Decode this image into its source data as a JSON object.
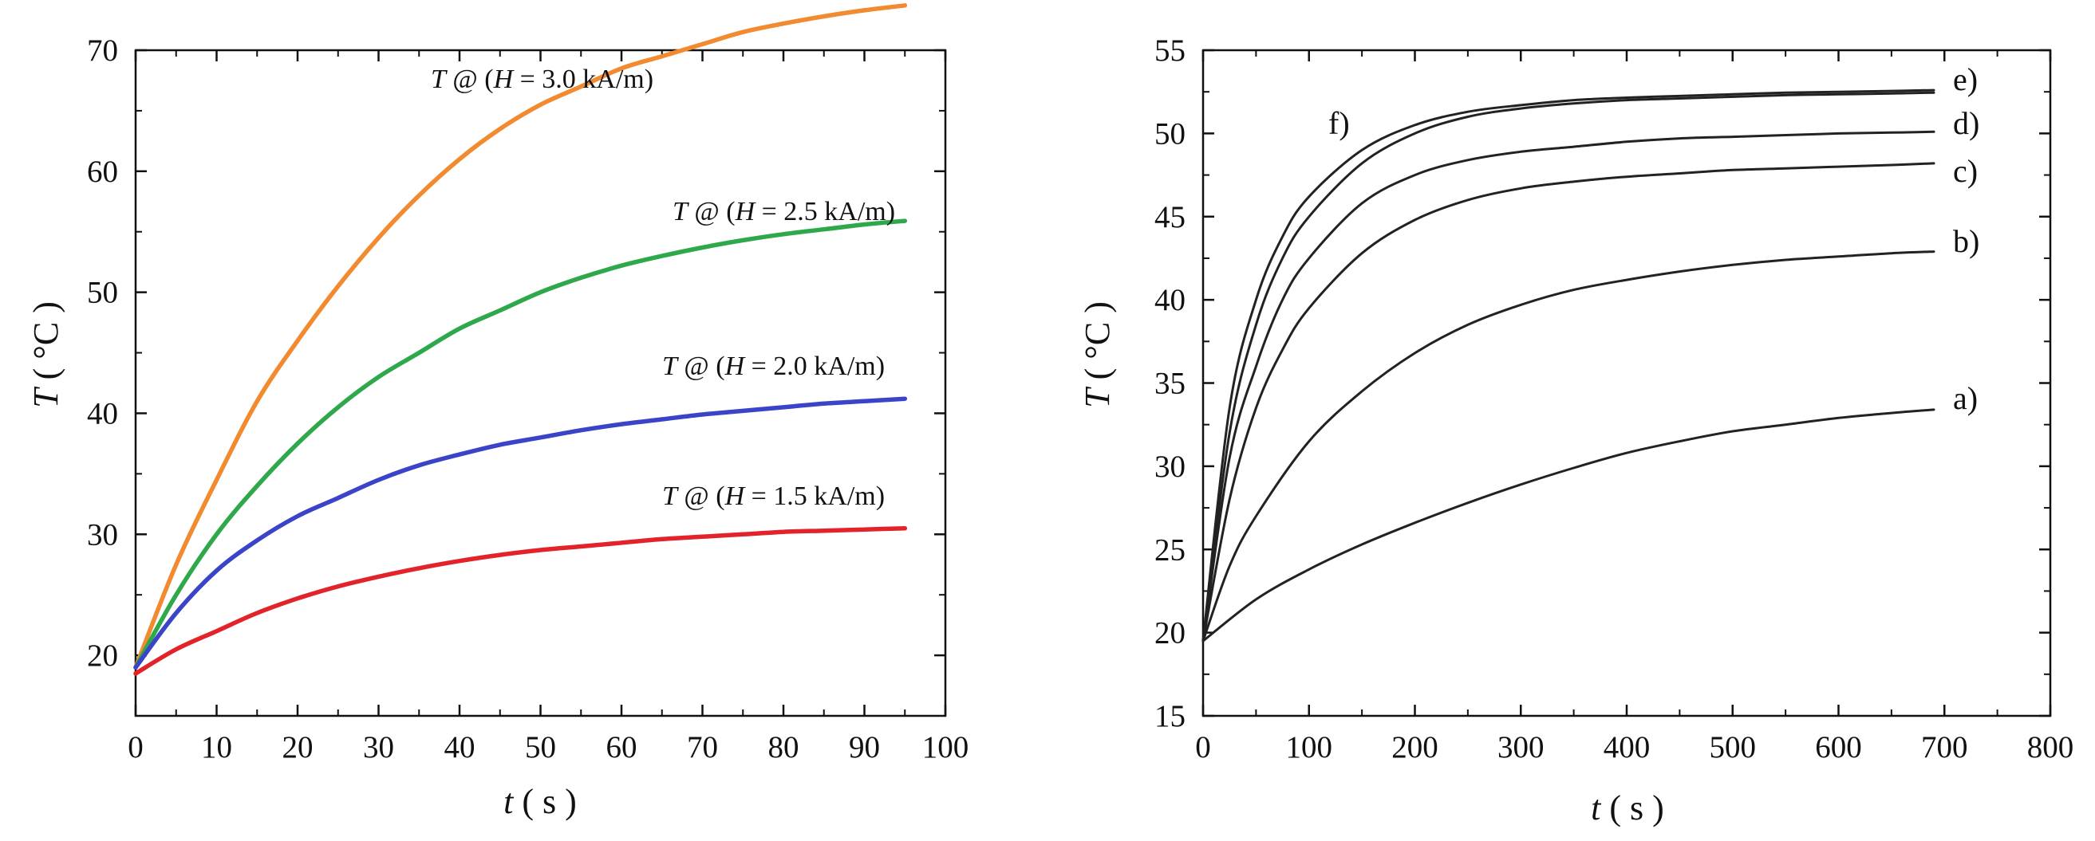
{
  "chart_data": [
    {
      "type": "line",
      "title": "",
      "xlabel": {
        "var": "t",
        "unit": "s"
      },
      "ylabel": {
        "var": "T",
        "unit": "°C"
      },
      "xlim": [
        0,
        100
      ],
      "ylim": [
        15,
        70
      ],
      "xticks": [
        "0",
        "10",
        "20",
        "30",
        "40",
        "50",
        "60",
        "70",
        "80",
        "90",
        "100"
      ],
      "yticks": [
        "20",
        "30",
        "40",
        "50",
        "60",
        "70"
      ],
      "grid": false,
      "series": [
        {
          "name": "T @ (H = 3.0 kA/m)",
          "label_parts": {
            "a": "T",
            "b": " @ (",
            "c": "H",
            "d": " = 3.0 kA/m)"
          },
          "color": "#f28a30",
          "x": [
            0,
            5,
            10,
            15,
            20,
            25,
            30,
            35,
            40,
            45,
            50,
            55,
            60,
            65,
            70,
            75,
            80,
            85,
            90,
            95
          ],
          "y": [
            19,
            27.5,
            34.5,
            41,
            46,
            50.5,
            54.5,
            58,
            61,
            63.5,
            65.5,
            67,
            68.5,
            69.5,
            70.5,
            71.5,
            72.2,
            72.8,
            73.3,
            73.7
          ]
        },
        {
          "name": "T @ (H = 2.5 kA/m)",
          "label_parts": {
            "a": "T",
            "b": " @ (",
            "c": "H",
            "d": " = 2.5 kA/m)"
          },
          "color": "#2ea84a",
          "x": [
            0,
            5,
            10,
            15,
            20,
            25,
            30,
            35,
            40,
            45,
            50,
            55,
            60,
            65,
            70,
            75,
            80,
            85,
            90,
            95
          ],
          "y": [
            19,
            25,
            30,
            34,
            37.5,
            40.5,
            43,
            45,
            47,
            48.5,
            50,
            51.2,
            52.2,
            53,
            53.7,
            54.3,
            54.8,
            55.2,
            55.6,
            55.9
          ]
        },
        {
          "name": "T @ (H = 2.0 kA/m)",
          "label_parts": {
            "a": "T",
            "b": " @ (",
            "c": "H",
            "d": " = 2.0 kA/m)"
          },
          "color": "#3b44c8",
          "x": [
            0,
            5,
            10,
            15,
            20,
            25,
            30,
            35,
            40,
            45,
            50,
            55,
            60,
            65,
            70,
            75,
            80,
            85,
            90,
            95
          ],
          "y": [
            19,
            23.5,
            27,
            29.5,
            31.5,
            33,
            34.5,
            35.7,
            36.6,
            37.4,
            38,
            38.6,
            39.1,
            39.5,
            39.9,
            40.2,
            40.5,
            40.8,
            41,
            41.2
          ]
        },
        {
          "name": "T @ (H = 1.5 kA/m)",
          "label_parts": {
            "a": "T",
            "b": " @ (",
            "c": "H",
            "d": " = 1.5 kA/m)"
          },
          "color": "#e3232a",
          "x": [
            0,
            5,
            10,
            15,
            20,
            25,
            30,
            35,
            40,
            45,
            50,
            55,
            60,
            65,
            70,
            75,
            80,
            85,
            90,
            95
          ],
          "y": [
            18.5,
            20.5,
            22,
            23.5,
            24.7,
            25.7,
            26.5,
            27.2,
            27.8,
            28.3,
            28.7,
            29,
            29.3,
            29.6,
            29.8,
            30,
            30.2,
            30.3,
            30.4,
            30.5
          ]
        }
      ]
    },
    {
      "type": "line",
      "title": "",
      "xlabel": {
        "var": "t",
        "unit": "s"
      },
      "ylabel": {
        "var": "T",
        "unit": "°C"
      },
      "xlim": [
        0,
        800
      ],
      "ylim": [
        15,
        55
      ],
      "xticks": [
        "0",
        "100",
        "200",
        "300",
        "400",
        "500",
        "600",
        "700",
        "800"
      ],
      "yticks": [
        "15",
        "20",
        "25",
        "30",
        "35",
        "40",
        "45",
        "50",
        "55"
      ],
      "grid": false,
      "series": [
        {
          "name": "a)",
          "color": "#222222",
          "x": [
            0,
            50,
            100,
            150,
            200,
            250,
            300,
            350,
            400,
            450,
            500,
            550,
            600,
            650,
            690
          ],
          "y": [
            19.5,
            22,
            23.8,
            25.3,
            26.6,
            27.8,
            28.9,
            29.9,
            30.8,
            31.5,
            32.1,
            32.5,
            32.9,
            33.2,
            33.4
          ]
        },
        {
          "name": "b)",
          "color": "#222222",
          "x": [
            0,
            25,
            50,
            100,
            150,
            200,
            250,
            300,
            350,
            400,
            450,
            500,
            550,
            600,
            650,
            690
          ],
          "y": [
            19.5,
            24,
            27,
            31.5,
            34.5,
            36.8,
            38.5,
            39.7,
            40.6,
            41.2,
            41.7,
            42.1,
            42.4,
            42.6,
            42.8,
            42.9
          ]
        },
        {
          "name": "c)",
          "color": "#222222",
          "x": [
            0,
            25,
            50,
            75,
            100,
            150,
            200,
            250,
            300,
            350,
            400,
            450,
            500,
            550,
            600,
            650,
            690
          ],
          "y": [
            19.5,
            28,
            33.5,
            37,
            39.5,
            42.8,
            44.8,
            46,
            46.7,
            47.1,
            47.4,
            47.6,
            47.8,
            47.9,
            48,
            48.1,
            48.2
          ]
        },
        {
          "name": "d)",
          "color": "#222222",
          "x": [
            0,
            25,
            50,
            75,
            100,
            150,
            200,
            250,
            300,
            350,
            400,
            450,
            500,
            550,
            600,
            650,
            690
          ],
          "y": [
            19.5,
            30.5,
            36,
            40,
            42.5,
            45.8,
            47.5,
            48.4,
            48.9,
            49.2,
            49.5,
            49.7,
            49.8,
            49.9,
            50,
            50.05,
            50.1
          ]
        },
        {
          "name": "e)",
          "color": "#222222",
          "x": [
            0,
            25,
            50,
            75,
            100,
            150,
            200,
            250,
            300,
            350,
            400,
            450,
            500,
            550,
            600,
            650,
            690
          ],
          "y": [
            19.5,
            32,
            38.5,
            42.5,
            45,
            48.2,
            50,
            51,
            51.5,
            51.8,
            52,
            52.1,
            52.2,
            52.3,
            52.35,
            52.4,
            52.45
          ]
        },
        {
          "name": "f)",
          "color": "#222222",
          "x": [
            0,
            25,
            50,
            75,
            100,
            150,
            200,
            250,
            300,
            350,
            400,
            450,
            500,
            550,
            600,
            650,
            690
          ],
          "y": [
            19.5,
            33.5,
            40,
            43.8,
            46.2,
            49,
            50.5,
            51.3,
            51.7,
            52,
            52.15,
            52.25,
            52.35,
            52.45,
            52.5,
            52.55,
            52.6
          ]
        }
      ]
    }
  ]
}
